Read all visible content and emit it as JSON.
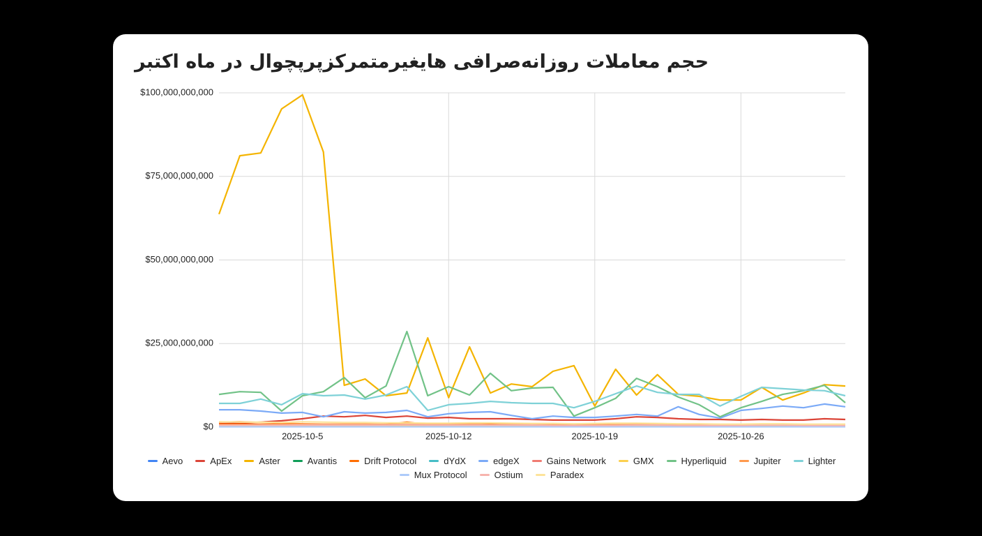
{
  "chart_data": {
    "type": "line",
    "title": "حجم معاملات روزانه‌صرافی هایغیرمتمرکزپرپچوال در ماه اکتبر",
    "categories": [
      null,
      null,
      null,
      null,
      "2025-10-5",
      null,
      null,
      null,
      null,
      null,
      null,
      "2025-10-12",
      null,
      null,
      null,
      null,
      null,
      null,
      "2025-10-19",
      null,
      null,
      null,
      null,
      null,
      null,
      "2025-10-26",
      null,
      null,
      null,
      null,
      null
    ],
    "ylim": [
      0,
      100000000000.0
    ],
    "yticks": [
      {
        "value": 0,
        "label": "$0"
      },
      {
        "value": 25000000000.0,
        "label": "$25,000,000,000"
      },
      {
        "value": 50000000000.0,
        "label": "$50,000,000,000"
      },
      {
        "value": 75000000000.0,
        "label": "$75,000,000,000"
      },
      {
        "value": 100000000000.0,
        "label": "$100,000,000,000"
      }
    ],
    "grid": true,
    "legend": "bottom",
    "series": [
      {
        "name": "Aevo",
        "color": "#4285f4",
        "values": [
          300000000.0,
          300000000.0,
          300000000.0,
          300000000.0,
          300000000.0,
          300000000.0,
          300000000.0,
          300000000.0,
          300000000.0,
          300000000.0,
          300000000.0,
          300000000.0,
          300000000.0,
          300000000.0,
          300000000.0,
          200000000.0,
          200000000.0,
          200000000.0,
          200000000.0,
          200000000.0,
          200000000.0,
          200000000.0,
          200000000.0,
          200000000.0,
          200000000.0,
          200000000.0,
          200000000.0,
          200000000.0,
          200000000.0,
          200000000.0,
          200000000.0
        ]
      },
      {
        "name": "ApEx",
        "color": "#db4437",
        "values": [
          1000000000.0,
          1200000000.0,
          1500000000.0,
          1900000000.0,
          2500000000.0,
          3300000000.0,
          3100000000.0,
          3500000000.0,
          2900000000.0,
          3300000000.0,
          2700000000.0,
          2900000000.0,
          2500000000.0,
          2500000000.0,
          2500000000.0,
          2300000000.0,
          2100000000.0,
          2100000000.0,
          2100000000.0,
          2500000000.0,
          3100000000.0,
          2900000000.0,
          2500000000.0,
          2300000000.0,
          2300000000.0,
          2100000000.0,
          2300000000.0,
          2100000000.0,
          2100000000.0,
          2500000000.0,
          2300000000.0
        ]
      },
      {
        "name": "Aster",
        "color": "#f4b400",
        "values": [
          63700000000.0,
          81200000000.0,
          82000000000.0,
          95200000000.0,
          99400000000.0,
          82300000000.0,
          12500000000.0,
          14400000000.0,
          9400000000.0,
          10200000000.0,
          26700000000.0,
          8800000000.0,
          24000000000.0,
          10200000000.0,
          12900000000.0,
          12100000000.0,
          16700000000.0,
          18400000000.0,
          6300000000.0,
          17300000000.0,
          9600000000.0,
          15700000000.0,
          9800000000.0,
          9200000000.0,
          8100000000.0,
          8100000000.0,
          11900000000.0,
          8100000000.0,
          10200000000.0,
          12700000000.0,
          12300000000.0
        ]
      },
      {
        "name": "Avantis",
        "color": "#0f9d58",
        "values": [
          500000000.0,
          500000000.0,
          400000000.0,
          400000000.0,
          500000000.0,
          500000000.0,
          600000000.0,
          500000000.0,
          500000000.0,
          800000000.0,
          500000000.0,
          500000000.0,
          600000000.0,
          700000000.0,
          1100000000.0,
          800000000.0,
          500000000.0,
          400000000.0,
          400000000.0,
          400000000.0,
          500000000.0,
          500000000.0,
          400000000.0,
          400000000.0,
          400000000.0,
          400000000.0,
          500000000.0,
          400000000.0,
          400000000.0,
          400000000.0,
          400000000.0
        ]
      },
      {
        "name": "Drift Protocol",
        "color": "#ff6d01",
        "values": [
          900000000.0,
          900000000.0,
          800000000.0,
          800000000.0,
          800000000.0,
          700000000.0,
          700000000.0,
          700000000.0,
          800000000.0,
          1500000000.0,
          800000000.0,
          900000000.0,
          900000000.0,
          800000000.0,
          800000000.0,
          800000000.0,
          600000000.0,
          600000000.0,
          600000000.0,
          600000000.0,
          700000000.0,
          700000000.0,
          600000000.0,
          600000000.0,
          600000000.0,
          500000000.0,
          600000000.0,
          600000000.0,
          600000000.0,
          500000000.0,
          500000000.0
        ]
      },
      {
        "name": "dYdX",
        "color": "#46bdc6",
        "values": [
          400000000.0,
          400000000.0,
          400000000.0,
          400000000.0,
          400000000.0,
          400000000.0,
          400000000.0,
          300000000.0,
          300000000.0,
          400000000.0,
          300000000.0,
          300000000.0,
          300000000.0,
          300000000.0,
          300000000.0,
          300000000.0,
          300000000.0,
          300000000.0,
          300000000.0,
          300000000.0,
          300000000.0,
          300000000.0,
          300000000.0,
          300000000.0,
          300000000.0,
          300000000.0,
          300000000.0,
          300000000.0,
          300000000.0,
          300000000.0,
          300000000.0
        ]
      },
      {
        "name": "edgeX",
        "color": "#7baaf7",
        "values": [
          5200000000.0,
          5200000000.0,
          4800000000.0,
          4200000000.0,
          4400000000.0,
          3100000000.0,
          4600000000.0,
          4200000000.0,
          4400000000.0,
          5000000000.0,
          3100000000.0,
          4000000000.0,
          4400000000.0,
          4600000000.0,
          3500000000.0,
          2500000000.0,
          3300000000.0,
          2900000000.0,
          2900000000.0,
          3300000000.0,
          3800000000.0,
          3300000000.0,
          6100000000.0,
          3800000000.0,
          2700000000.0,
          5000000000.0,
          5600000000.0,
          6300000000.0,
          5800000000.0,
          6900000000.0,
          6100000000.0
        ]
      },
      {
        "name": "Gains Network",
        "color": "#f07b72",
        "values": [
          200000000.0,
          200000000.0,
          200000000.0,
          200000000.0,
          200000000.0,
          200000000.0,
          200000000.0,
          200000000.0,
          200000000.0,
          300000000.0,
          200000000.0,
          200000000.0,
          200000000.0,
          200000000.0,
          200000000.0,
          200000000.0,
          200000000.0,
          200000000.0,
          200000000.0,
          200000000.0,
          200000000.0,
          200000000.0,
          200000000.0,
          200000000.0,
          200000000.0,
          200000000.0,
          200000000.0,
          200000000.0,
          200000000.0,
          200000000.0,
          200000000.0
        ]
      },
      {
        "name": "GMX",
        "color": "#fcd04f",
        "values": [
          300000000.0,
          300000000.0,
          300000000.0,
          300000000.0,
          300000000.0,
          300000000.0,
          300000000.0,
          300000000.0,
          300000000.0,
          400000000.0,
          300000000.0,
          300000000.0,
          300000000.0,
          300000000.0,
          300000000.0,
          300000000.0,
          300000000.0,
          300000000.0,
          300000000.0,
          300000000.0,
          300000000.0,
          300000000.0,
          300000000.0,
          300000000.0,
          300000000.0,
          300000000.0,
          300000000.0,
          300000000.0,
          300000000.0,
          300000000.0,
          300000000.0
        ]
      },
      {
        "name": "Hyperliquid",
        "color": "#71c287",
        "values": [
          9800000000.0,
          10600000000.0,
          10400000000.0,
          4800000000.0,
          9400000000.0,
          10600000000.0,
          14800000000.0,
          8800000000.0,
          12300000000.0,
          28600000000.0,
          9400000000.0,
          12100000000.0,
          9600000000.0,
          16100000000.0,
          10900000000.0,
          11700000000.0,
          11900000000.0,
          3300000000.0,
          5800000000.0,
          8600000000.0,
          14600000000.0,
          12100000000.0,
          9000000000.0,
          6700000000.0,
          3100000000.0,
          5800000000.0,
          7700000000.0,
          9800000000.0,
          10900000000.0,
          12500000000.0,
          7300000000.0
        ]
      },
      {
        "name": "Jupiter",
        "color": "#ff994d",
        "values": [
          1500000000.0,
          1600000000.0,
          1400000000.0,
          1200000000.0,
          1000000000.0,
          900000000.0,
          900000000.0,
          900000000.0,
          800000000.0,
          1000000000.0,
          900000000.0,
          800000000.0,
          900000000.0,
          1200000000.0,
          900000000.0,
          800000000.0,
          700000000.0,
          700000000.0,
          700000000.0,
          700000000.0,
          800000000.0,
          800000000.0,
          700000000.0,
          700000000.0,
          700000000.0,
          600000000.0,
          700000000.0,
          700000000.0,
          700000000.0,
          600000000.0,
          600000000.0
        ]
      },
      {
        "name": "Lighter",
        "color": "#7ed1d7",
        "values": [
          7100000000.0,
          7100000000.0,
          8400000000.0,
          6700000000.0,
          10000000000.0,
          9400000000.0,
          9600000000.0,
          8400000000.0,
          9600000000.0,
          12100000000.0,
          5000000000.0,
          6700000000.0,
          7100000000.0,
          7700000000.0,
          7300000000.0,
          7100000000.0,
          7100000000.0,
          5800000000.0,
          7700000000.0,
          10000000000.0,
          12300000000.0,
          10400000000.0,
          9800000000.0,
          9800000000.0,
          6300000000.0,
          9200000000.0,
          11900000000.0,
          11500000000.0,
          11100000000.0,
          10900000000.0,
          9400000000.0
        ]
      },
      {
        "name": "Mux Protocol",
        "color": "#aecbfa",
        "values": [
          100000000.0,
          100000000.0,
          100000000.0,
          100000000.0,
          100000000.0,
          100000000.0,
          100000000.0,
          100000000.0,
          100000000.0,
          100000000.0,
          100000000.0,
          100000000.0,
          100000000.0,
          100000000.0,
          100000000.0,
          100000000.0,
          100000000.0,
          100000000.0,
          100000000.0,
          100000000.0,
          100000000.0,
          100000000.0,
          100000000.0,
          100000000.0,
          100000000.0,
          100000000.0,
          100000000.0,
          100000000.0,
          100000000.0,
          100000000.0,
          100000000.0
        ]
      },
      {
        "name": "Ostium",
        "color": "#f7b4ae",
        "values": [
          600000000.0,
          600000000.0,
          600000000.0,
          600000000.0,
          600000000.0,
          600000000.0,
          600000000.0,
          600000000.0,
          600000000.0,
          700000000.0,
          600000000.0,
          600000000.0,
          600000000.0,
          600000000.0,
          600000000.0,
          600000000.0,
          500000000.0,
          500000000.0,
          500000000.0,
          500000000.0,
          600000000.0,
          600000000.0,
          500000000.0,
          500000000.0,
          500000000.0,
          500000000.0,
          600000000.0,
          600000000.0,
          500000000.0,
          500000000.0,
          500000000.0
        ]
      },
      {
        "name": "Paradex",
        "color": "#fde49b",
        "values": [
          1600000000.0,
          1500000000.0,
          1500000000.0,
          1400000000.0,
          1600000000.0,
          1500000000.0,
          1400000000.0,
          1400000000.0,
          1300000000.0,
          1300000000.0,
          1200000000.0,
          1200000000.0,
          1300000000.0,
          1300000000.0,
          1200000000.0,
          1100000000.0,
          1100000000.0,
          1000000000.0,
          1100000000.0,
          1200000000.0,
          1200000000.0,
          1100000000.0,
          1000000000.0,
          1000000000.0,
          900000000.0,
          900000000.0,
          1000000000.0,
          1000000000.0,
          900000000.0,
          900000000.0,
          900000000.0
        ]
      }
    ]
  }
}
